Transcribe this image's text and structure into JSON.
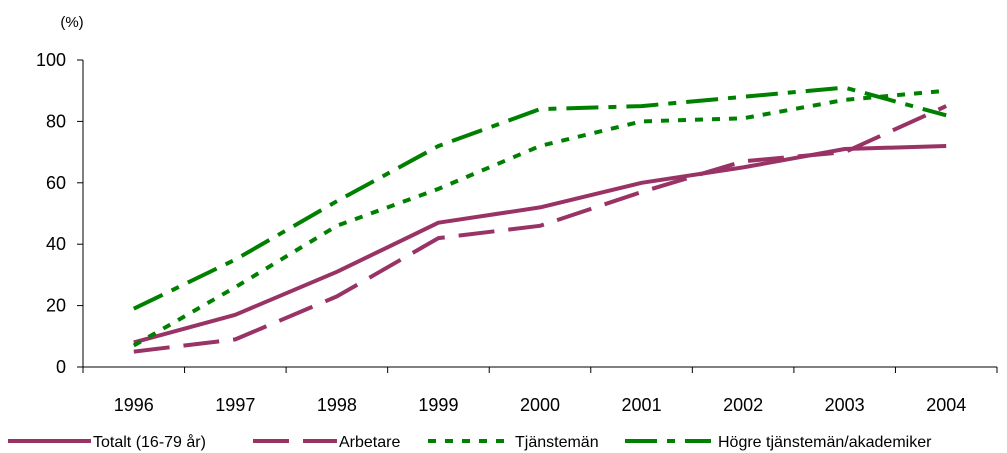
{
  "chart_data": {
    "type": "line",
    "title": "",
    "xlabel": "",
    "ylabel": "(%)",
    "ylim": [
      0,
      100
    ],
    "yticks": [
      0,
      20,
      40,
      60,
      80,
      100
    ],
    "categories": [
      "1996",
      "1997",
      "1998",
      "1999",
      "2000",
      "2001",
      "2002",
      "2003",
      "2004"
    ],
    "grid": false,
    "legend_position": "bottom",
    "series": [
      {
        "name": "Totalt (16-79 år)",
        "color": "#993366",
        "dash": "solid",
        "values": [
          8,
          17,
          31,
          47,
          52,
          60,
          65,
          71,
          72
        ]
      },
      {
        "name": "Arbetare",
        "color": "#993366",
        "dash": "long-dash",
        "values": [
          5,
          9,
          23,
          42,
          46,
          57,
          67,
          70,
          85
        ]
      },
      {
        "name": "Tjänstemän",
        "color": "#008000",
        "dash": "dotted",
        "values": [
          7,
          26,
          46,
          58,
          72,
          80,
          81,
          87,
          90
        ]
      },
      {
        "name": "Högre tjänstemän/akademiker",
        "color": "#008000",
        "dash": "dash-dot",
        "values": [
          19,
          35,
          54,
          72,
          84,
          85,
          88,
          91,
          82
        ]
      }
    ]
  }
}
